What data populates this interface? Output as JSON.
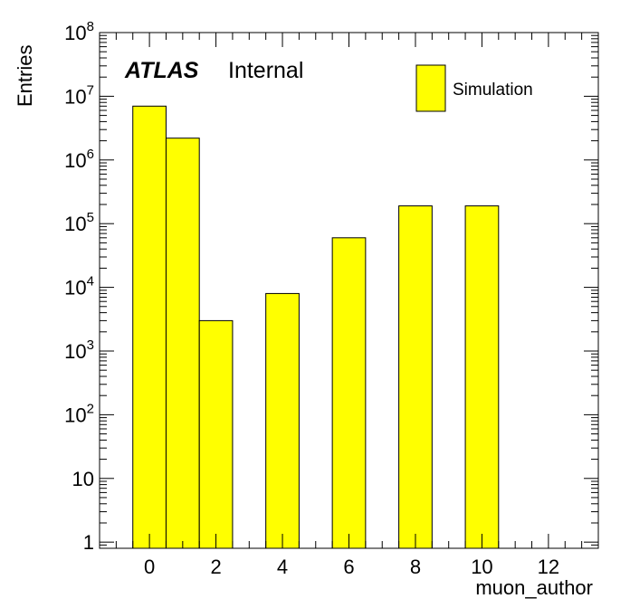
{
  "chart_data": {
    "type": "bar",
    "histogram": true,
    "title": "",
    "xlabel": "muon_author",
    "ylabel": "Entries",
    "xlim": [
      -1.5,
      13.5
    ],
    "ylim": [
      0.8,
      100000000
    ],
    "yscale": "log",
    "grid": false,
    "legend_position": "top-right",
    "bin_width": 1,
    "x_ticks": [
      0,
      2,
      4,
      6,
      8,
      10,
      12
    ],
    "y_ticks": [
      {
        "value": 1,
        "base": "1",
        "exp": ""
      },
      {
        "value": 10,
        "base": "10",
        "exp": ""
      },
      {
        "value": 100,
        "base": "10",
        "exp": "2"
      },
      {
        "value": 1000,
        "base": "10",
        "exp": "3"
      },
      {
        "value": 10000,
        "base": "10",
        "exp": "4"
      },
      {
        "value": 100000,
        "base": "10",
        "exp": "5"
      },
      {
        "value": 1000000,
        "base": "10",
        "exp": "6"
      },
      {
        "value": 10000000,
        "base": "10",
        "exp": "7"
      },
      {
        "value": 100000000,
        "base": "10",
        "exp": "8"
      }
    ],
    "bins": [
      {
        "x": 0,
        "value": 7000000
      },
      {
        "x": 1,
        "value": 2200000
      },
      {
        "x": 2,
        "value": 3000
      },
      {
        "x": 4,
        "value": 8000
      },
      {
        "x": 6,
        "value": 60000
      },
      {
        "x": 8,
        "value": 190000
      },
      {
        "x": 10,
        "value": 190000
      }
    ],
    "series": [
      {
        "name": "Simulation",
        "color": "#ffff00"
      }
    ]
  },
  "labels": {
    "experiment": "ATLAS",
    "status": "Internal"
  },
  "colors": {
    "fill": "#ffff00",
    "edge": "#000000"
  }
}
